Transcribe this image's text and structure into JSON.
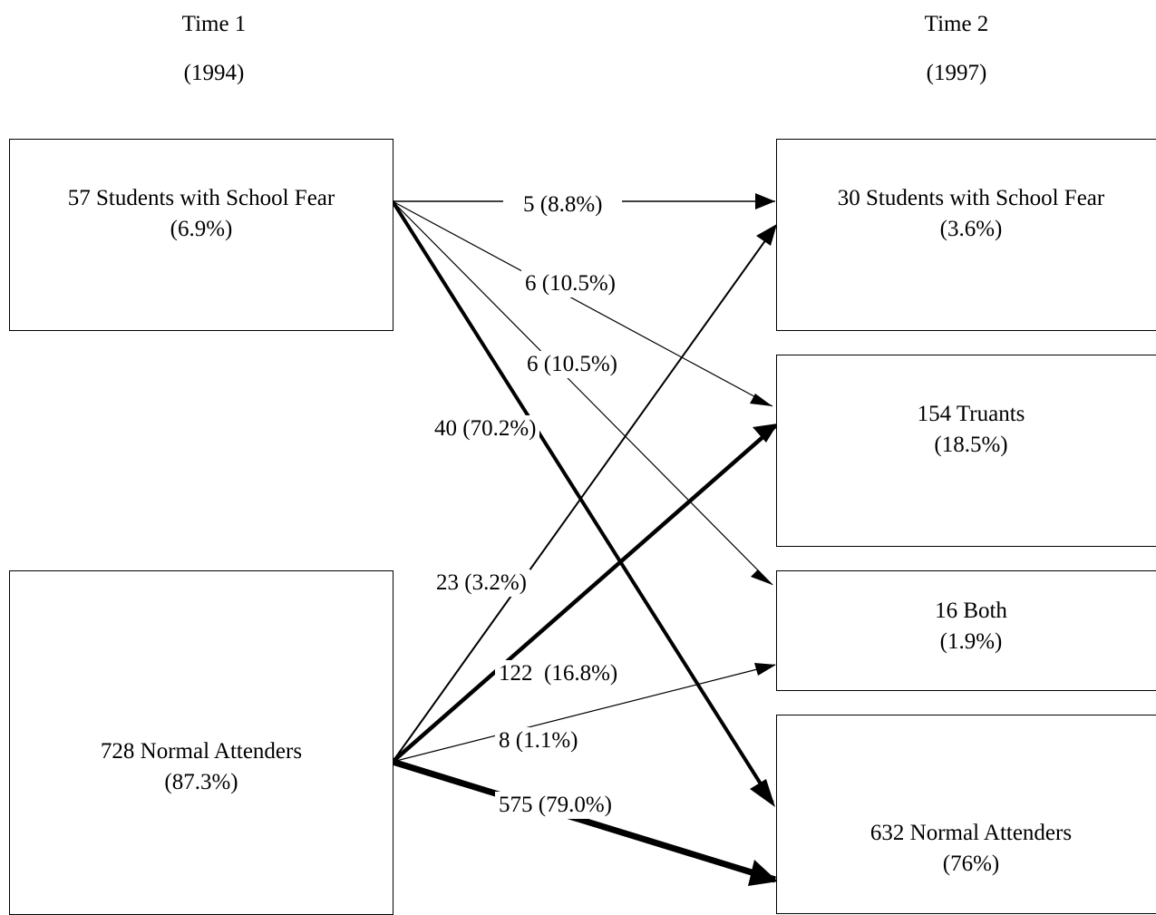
{
  "time1": {
    "title": "Time 1",
    "year": "(1994)"
  },
  "time2": {
    "title": "Time 2",
    "year": "(1997)"
  },
  "boxes": {
    "fear_t1": {
      "line1": "57 Students with School Fear",
      "line2": "(6.9%)"
    },
    "normal_t1": {
      "line1": "728 Normal Attenders",
      "line2": "(87.3%)"
    },
    "fear_t2": {
      "line1": "30 Students with School Fear",
      "line2": "(3.6%)"
    },
    "truants_t2": {
      "line1": "154 Truants",
      "line2": "(18.5%)"
    },
    "both_t2": {
      "line1": "16 Both",
      "line2": "(1.9%)"
    },
    "normal_t2": {
      "line1": "632 Normal Attenders",
      "line2": "(76%)"
    }
  },
  "flows": {
    "fear_to_fear": {
      "label": "5 (8.8%)"
    },
    "fear_to_truants": {
      "label": "6 (10.5%)"
    },
    "fear_to_both": {
      "label": "6 (10.5%)"
    },
    "fear_to_normal": {
      "label": "40 (70.2%)"
    },
    "normal_to_fear": {
      "label": "23 (3.2%)"
    },
    "normal_to_truants": {
      "label": "122  (16.8%)"
    },
    "normal_to_both": {
      "label": "8 (1.1%)"
    },
    "normal_to_normal": {
      "label": "575 (79.0%)"
    }
  }
}
